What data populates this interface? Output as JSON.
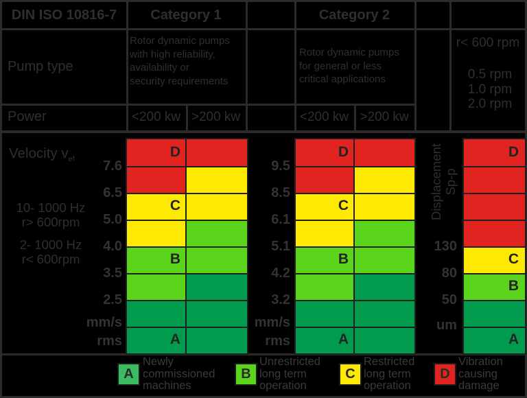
{
  "header": {
    "standard": "DIN ISO 10816-7",
    "category1": "Category 1",
    "category2": "Category 2",
    "pump_type_label": "Pump type",
    "power_label": "Power",
    "cat1_description": [
      "Rotor dynamic pumps",
      "with high reliability,",
      "availability or",
      "security requirements"
    ],
    "cat2_description": [
      "Rotor dynamic pumps",
      "for general or less",
      "critical applications"
    ],
    "power_cols": [
      "<200 kw",
      ">200 kw",
      "<200 kw",
      ">200 kw"
    ],
    "speed_note": {
      "line1": "r< 600 rpm",
      "values": [
        "0.5 rpm",
        "1.0 rpm",
        "2.0 rpm"
      ]
    }
  },
  "chart_data": {
    "type": "heatmap",
    "title": "DIN ISO 10816-7 vibration evaluation zones for rotor dynamic pumps",
    "velocity_axis_label": "Velocity v",
    "velocity_axis_sub": "ef",
    "velocity_unit": [
      "mm/s",
      "rms"
    ],
    "displacement_axis_label": [
      "Displacement",
      "Sp-p"
    ],
    "displacement_unit": "um",
    "frequency_notes": [
      [
        "10- 1000 Hz",
        "r> 600rpm"
      ],
      [
        "2- 1000 Hz",
        "r< 600rpm"
      ]
    ],
    "cat1_ticks": [
      "7.6",
      "6.5",
      "5.0",
      "4.0",
      "3.5",
      "2.5"
    ],
    "cat2_ticks": [
      "9.5",
      "8.5",
      "6.1",
      "5.1",
      "4.2",
      "3.2"
    ],
    "displacement_ticks": [
      "130",
      "80",
      "50"
    ],
    "zone_colors": {
      "red": "#e22420",
      "yellow": "#fee903",
      "green": "#5bd51c",
      "dkgreen": "#009b4c"
    },
    "zones": [
      {
        "column": "Category 1 <200 kw",
        "unit": "mm/s rms",
        "A_B": 2.5,
        "B_C": 4.0,
        "C_D": 6.5
      },
      {
        "column": "Category 1 >200 kw",
        "unit": "mm/s rms",
        "A_B": 3.5,
        "B_C": 5.0,
        "C_D": 7.6
      },
      {
        "column": "Category 2 <200 kw",
        "unit": "mm/s rms",
        "A_B": 3.2,
        "B_C": 5.1,
        "C_D": 8.5
      },
      {
        "column": "Category 2 >200 kw",
        "unit": "mm/s rms",
        "A_B": 4.2,
        "B_C": 6.1,
        "C_D": 9.5
      },
      {
        "column": "Displacement Sp-p",
        "unit": "um",
        "A_B": 50,
        "B_C": 80,
        "C_D": 130
      }
    ],
    "columns": [
      {
        "group": "Category 1",
        "power": "<200 kw",
        "cells": [
          "red",
          "red",
          "yellow",
          "yellow",
          "green",
          "green",
          "dkgreen",
          "dkgreen"
        ],
        "letters": [
          "D",
          "",
          "C",
          "",
          "B",
          "",
          "",
          "A"
        ]
      },
      {
        "group": "Category 1",
        "power": ">200 kw",
        "cells": [
          "red",
          "yellow",
          "yellow",
          "green",
          "green",
          "dkgreen",
          "dkgreen",
          "dkgreen"
        ],
        "letters": [
          "",
          "",
          "",
          "",
          "",
          "",
          "",
          ""
        ]
      },
      {
        "group": "Category 2",
        "power": "<200 kw",
        "cells": [
          "red",
          "red",
          "yellow",
          "yellow",
          "green",
          "green",
          "dkgreen",
          "dkgreen"
        ],
        "letters": [
          "D",
          "",
          "C",
          "",
          "B",
          "",
          "",
          "A"
        ]
      },
      {
        "group": "Category 2",
        "power": ">200 kw",
        "cells": [
          "red",
          "yellow",
          "yellow",
          "green",
          "green",
          "dkgreen",
          "dkgreen",
          "dkgreen"
        ],
        "letters": [
          "",
          "",
          "",
          "",
          "",
          "",
          "",
          ""
        ]
      },
      {
        "group": "Displacement",
        "power": "",
        "cells": [
          "red",
          "red",
          "red",
          "red",
          "yellow",
          "green",
          "dkgreen",
          "dkgreen"
        ],
        "letters": [
          "D",
          "",
          "",
          "",
          "C",
          "B",
          "",
          "A"
        ]
      }
    ]
  },
  "legend": [
    {
      "letter": "A",
      "color": "#3bbb62",
      "label": [
        "Newly",
        "commissioned",
        "machines"
      ]
    },
    {
      "letter": "B",
      "color": "#5bd51c",
      "label": [
        "Unrestricted",
        "long term",
        "operation"
      ]
    },
    {
      "letter": "C",
      "color": "#fee903",
      "label": [
        "Restricted",
        "long term",
        "operation"
      ]
    },
    {
      "letter": "D",
      "color": "#e22420",
      "label": [
        "Vibration",
        "causing",
        "damage"
      ]
    }
  ]
}
